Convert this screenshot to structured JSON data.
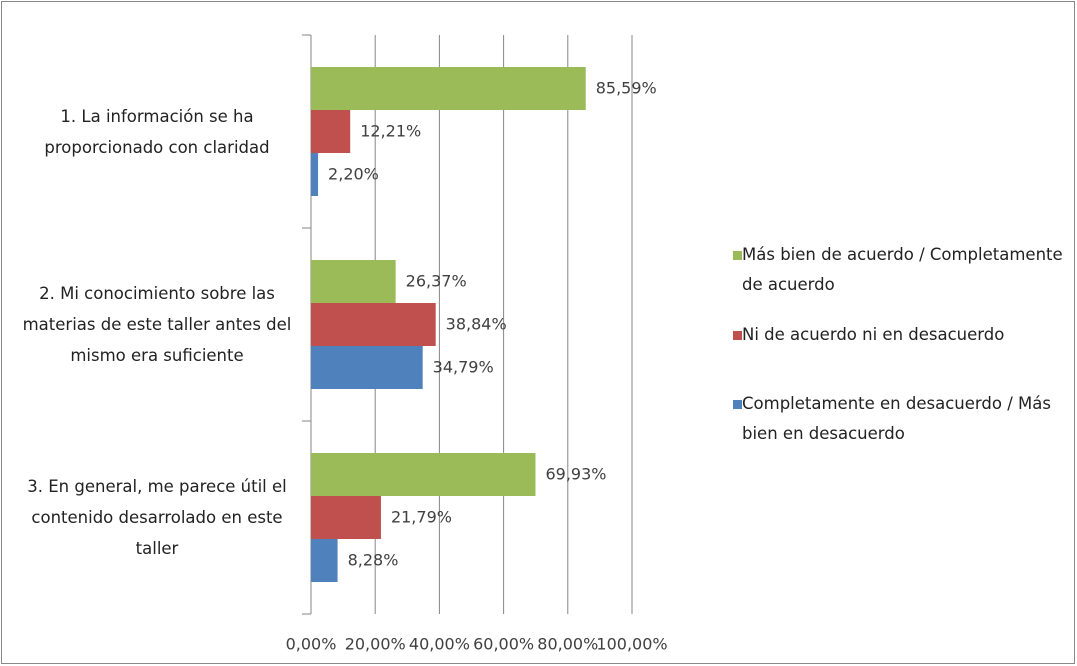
{
  "chart_data": {
    "type": "hbar",
    "categories": [
      "1. La información se ha proporcionado con claridad",
      "2. Mi conocimiento sobre las materias de este taller antes del mismo era suficiente",
      "3. En general, me parece útil el contenido desarrolado en este taller"
    ],
    "series": [
      {
        "name": "Más bien de acuerdo / Completamente de acuerdo",
        "color": "#9bbb59",
        "values": [
          85.59,
          26.37,
          69.93
        ],
        "value_labels": [
          "85,59%",
          "26,37%",
          "69,93%"
        ]
      },
      {
        "name": "Ni de acuerdo ni en desacuerdo",
        "color": "#c0504d",
        "values": [
          12.21,
          38.84,
          21.79
        ],
        "value_labels": [
          "12,21%",
          "38,84%",
          "21,79%"
        ]
      },
      {
        "name": "Completamente en desacuerdo / Más bien en desacuerdo",
        "color": "#4f81bd",
        "values": [
          2.2,
          34.79,
          8.28
        ],
        "value_labels": [
          "2,20%",
          "34,79%",
          "8,28%"
        ]
      }
    ],
    "xlim": [
      0,
      100
    ],
    "xticks": [
      {
        "value": 0,
        "label": "0,00%"
      },
      {
        "value": 20,
        "label": "20,00%"
      },
      {
        "value": 40,
        "label": "40,00%"
      },
      {
        "value": 60,
        "label": "60,00%"
      },
      {
        "value": 80,
        "label": "80,00%"
      },
      {
        "value": 100,
        "label": "100,00%"
      }
    ],
    "grid": true,
    "legend": "right"
  }
}
